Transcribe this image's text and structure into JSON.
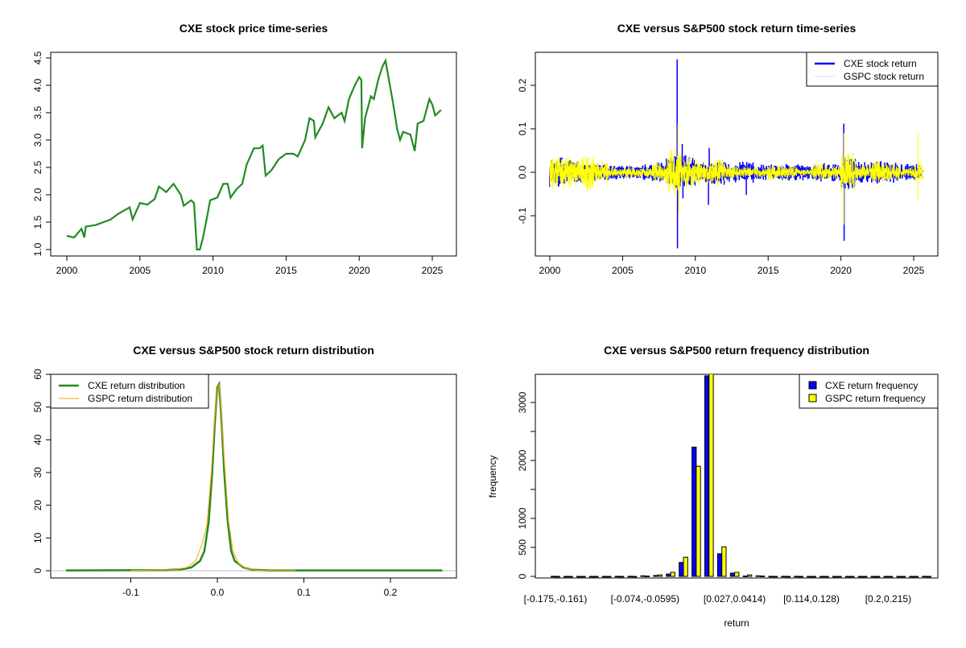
{
  "chart_data": [
    {
      "type": "line",
      "title": "CXE stock price time-series",
      "xlabel": "",
      "ylabel": "",
      "xlim": [
        2000,
        2025.6
      ],
      "ylim": [
        1.0,
        4.5
      ],
      "xticks": [
        "2000",
        "2005",
        "2010",
        "2015",
        "2020",
        "2025"
      ],
      "yticks": [
        "1.0",
        "1.5",
        "2.0",
        "2.5",
        "3.0",
        "3.5",
        "4.0",
        "4.5"
      ],
      "color": "#228B22",
      "series": [
        {
          "name": "CXE price",
          "x": [
            2000.0,
            2000.5,
            2001.0,
            2001.2,
            2001.3,
            2002,
            2002.5,
            2003,
            2003.5,
            2004.3,
            2004.5,
            2005,
            2005.5,
            2006,
            2006.3,
            2006.8,
            2007.3,
            2007.8,
            2008.0,
            2008.5,
            2008.7,
            2008.9,
            2009.1,
            2009.3,
            2009.6,
            2009.8,
            2010.3,
            2010.7,
            2011.0,
            2011.2,
            2011.6,
            2012,
            2012.3,
            2012.8,
            2013.2,
            2013.4,
            2013.6,
            2014.0,
            2014.5,
            2015.0,
            2015.5,
            2015.8,
            2016.3,
            2016.6,
            2016.9,
            2017.0,
            2017.5,
            2017.9,
            2018.3,
            2018.8,
            2019.0,
            2019.3,
            2019.7,
            2020.0,
            2020.15,
            2020.2,
            2020.4,
            2020.8,
            2021.0,
            2021.3,
            2021.6,
            2021.8,
            2022.0,
            2022.3,
            2022.6,
            2022.8,
            2023.0,
            2023.5,
            2023.8,
            2024.0,
            2024.4,
            2024.8,
            2025.0,
            2025.2,
            2025.4,
            2025.6
          ],
          "y": [
            1.25,
            1.22,
            1.38,
            1.22,
            1.42,
            1.45,
            1.5,
            1.55,
            1.65,
            1.77,
            1.55,
            1.85,
            1.82,
            1.92,
            2.15,
            2.05,
            2.2,
            2.0,
            1.8,
            1.9,
            1.85,
            1.0,
            1.0,
            1.2,
            1.6,
            1.9,
            1.95,
            2.2,
            2.2,
            1.95,
            2.1,
            2.2,
            2.55,
            2.85,
            2.85,
            2.9,
            2.35,
            2.45,
            2.65,
            2.75,
            2.75,
            2.7,
            3.0,
            3.4,
            3.35,
            3.05,
            3.3,
            3.6,
            3.4,
            3.5,
            3.35,
            3.75,
            4.0,
            4.15,
            4.1,
            2.85,
            3.4,
            3.8,
            3.75,
            4.1,
            4.35,
            4.45,
            4.15,
            3.7,
            3.2,
            3.0,
            3.15,
            3.1,
            2.8,
            3.3,
            3.35,
            3.75,
            3.65,
            3.45,
            3.5,
            3.55
          ]
        }
      ]
    },
    {
      "type": "line",
      "title": "CXE versus S&P500 stock return time-series",
      "xlim": [
        2000,
        2025.6
      ],
      "ylim": [
        -0.175,
        0.26
      ],
      "xticks": [
        "2000",
        "2005",
        "2010",
        "2015",
        "2020",
        "2025"
      ],
      "yticks": [
        "-0.1",
        "0.0",
        "0.1",
        "0.2"
      ],
      "legend": {
        "position": "top-right",
        "entries": [
          "CXE stock return",
          "GSPC stock return"
        ]
      },
      "series": [
        {
          "name": "CXE stock return",
          "color": "#0000FF",
          "yearly_volatility": [
            0.025,
            0.022,
            0.018,
            0.016,
            0.014,
            0.012,
            0.013,
            0.018,
            0.03,
            0.03,
            0.02,
            0.022,
            0.018,
            0.02,
            0.014,
            0.015,
            0.016,
            0.014,
            0.016,
            0.017,
            0.03,
            0.018,
            0.02,
            0.02,
            0.016,
            0.016
          ],
          "spikes": [
            {
              "x": 2008.75,
              "y": 0.26
            },
            {
              "x": 2008.77,
              "y": -0.175
            },
            {
              "x": 2009.1,
              "y": 0.065
            },
            {
              "x": 2009.15,
              "y": -0.06
            },
            {
              "x": 2010.95,
              "y": 0.056
            },
            {
              "x": 2010.9,
              "y": -0.075
            },
            {
              "x": 2013.5,
              "y": -0.052
            },
            {
              "x": 2020.2,
              "y": 0.112
            },
            {
              "x": 2020.22,
              "y": -0.158
            }
          ]
        },
        {
          "name": "GSPC stock return",
          "color": "#FFFF00",
          "yearly_volatility": [
            0.03,
            0.03,
            0.035,
            0.02,
            0.01,
            0.01,
            0.01,
            0.018,
            0.04,
            0.03,
            0.02,
            0.025,
            0.012,
            0.01,
            0.01,
            0.015,
            0.012,
            0.006,
            0.015,
            0.012,
            0.035,
            0.015,
            0.022,
            0.015,
            0.01,
            0.02
          ],
          "spikes": [
            {
              "x": 2008.8,
              "y": 0.11
            },
            {
              "x": 2008.85,
              "y": -0.095
            },
            {
              "x": 2020.22,
              "y": 0.09
            },
            {
              "x": 2020.2,
              "y": -0.12
            },
            {
              "x": 2025.3,
              "y": 0.092
            },
            {
              "x": 2025.28,
              "y": -0.062
            }
          ]
        }
      ]
    },
    {
      "type": "line",
      "title": "CXE versus S&P500 stock return distribution",
      "xlim": [
        -0.175,
        0.26
      ],
      "ylim": [
        0,
        60
      ],
      "xticks": [
        "-0.1",
        "0.0",
        "0.1",
        "0.2"
      ],
      "yticks": [
        "0",
        "10",
        "20",
        "30",
        "40",
        "50",
        "60"
      ],
      "legend": {
        "position": "top-left",
        "entries": [
          "CXE return distribution",
          "GSPC return distribution"
        ]
      },
      "series": [
        {
          "name": "CXE return distribution",
          "color": "#228B22",
          "x": [
            -0.175,
            -0.06,
            -0.04,
            -0.03,
            -0.02,
            -0.015,
            -0.01,
            -0.006,
            -0.003,
            0,
            0.002,
            0.005,
            0.008,
            0.012,
            0.016,
            0.02,
            0.03,
            0.04,
            0.06,
            0.26
          ],
          "y": [
            0.1,
            0.2,
            0.5,
            1,
            3,
            6,
            15,
            30,
            45,
            56,
            57,
            45,
            30,
            15,
            6,
            3,
            1,
            0.3,
            0.1,
            0.1
          ]
        },
        {
          "name": "GSPC return distribution",
          "color": "#FFA500",
          "x": [
            -0.1,
            -0.05,
            -0.035,
            -0.025,
            -0.018,
            -0.012,
            -0.007,
            -0.003,
            0,
            0.002,
            0.005,
            0.009,
            0.013,
            0.018,
            0.025,
            0.035,
            0.05,
            0.09
          ],
          "y": [
            0.1,
            0.3,
            1,
            3,
            8,
            14,
            30,
            47,
            55,
            57,
            46,
            30,
            15,
            6,
            2,
            0.6,
            0.1,
            0.1
          ]
        }
      ]
    },
    {
      "type": "bar",
      "title": "CXE versus S&P500 return frequency distribution",
      "xlabel": "return",
      "ylabel": "frequency",
      "ylim": [
        0,
        3490
      ],
      "yticks": [
        "0",
        "500",
        "1000",
        "2000",
        "3000"
      ],
      "yticks_minor": [
        1500,
        2500
      ],
      "shown_category_labels": {
        "0": "[-0.175,-0.161)",
        "7": "[-0.074,-0.0595)",
        "14": "[0.027,0.0414)",
        "20": "[0.114,0.128)",
        "26": "[0.2,0.215)"
      },
      "legend": {
        "position": "top-right",
        "entries": [
          "CXE return frequency",
          "GSPC return frequency"
        ]
      },
      "series": [
        {
          "name": "CXE return frequency",
          "color": "#0000FF",
          "values": [
            1,
            0,
            0,
            0,
            0,
            1,
            2,
            10,
            15,
            40,
            240,
            2230,
            3460,
            390,
            55,
            5,
            10,
            1,
            1,
            1,
            0,
            0,
            0,
            0,
            0,
            0,
            0,
            0,
            0,
            1
          ]
        },
        {
          "name": "GSPC return frequency",
          "color": "#FFFF00",
          "values": [
            0,
            0,
            0,
            0,
            0,
            0,
            0,
            5,
            25,
            70,
            330,
            1900,
            3600,
            510,
            70,
            25,
            5,
            0,
            0,
            0,
            0,
            0,
            0,
            0,
            0,
            0,
            0,
            0,
            0,
            0
          ]
        }
      ]
    }
  ]
}
